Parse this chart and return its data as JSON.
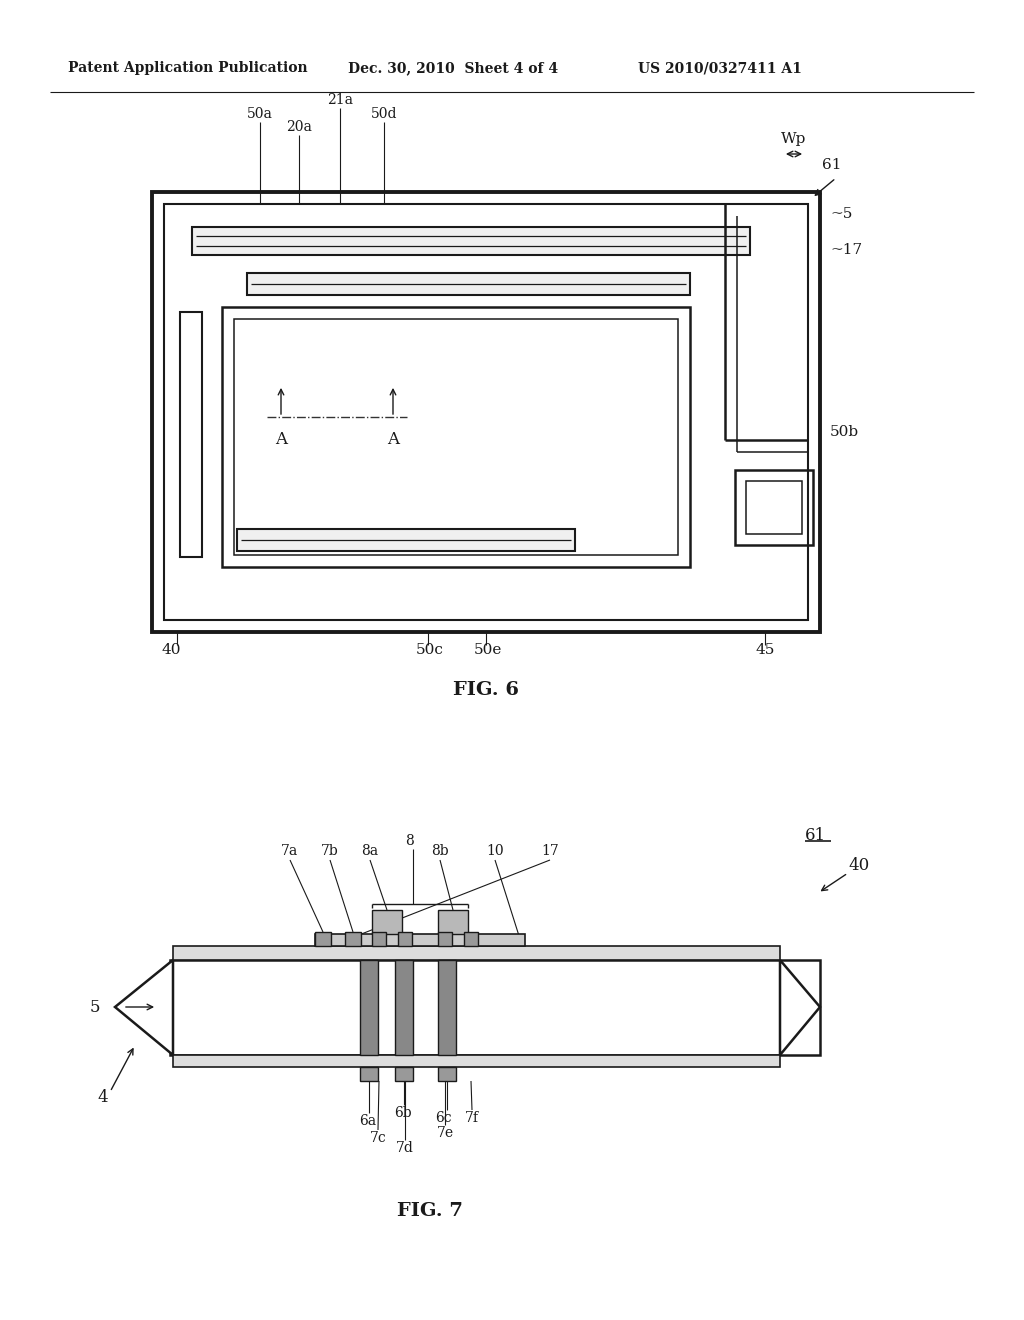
{
  "bg_color": "#ffffff",
  "line_color": "#1a1a1a",
  "header_left": "Patent Application Publication",
  "header_mid": "Dec. 30, 2010  Sheet 4 of 4",
  "header_right": "US 2010/0327411 A1",
  "fig6_title": "FIG. 6",
  "fig7_title": "FIG. 7",
  "hatch_color": "#444444"
}
